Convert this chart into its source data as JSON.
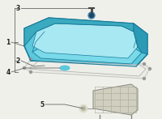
{
  "bg_color": "#f0f0eb",
  "pan_fill": "#5bc8dc",
  "pan_edge": "#1a7a9a",
  "pan_inner_fill": "#7adaea",
  "pan_inner2_fill": "#a8e8f2",
  "pan_wall_fill": "#3aaabf",
  "gasket_line": "#999999",
  "filter_fill": "#d0cfc0",
  "filter_edge": "#888880",
  "filter_grid": "#aaa898",
  "line_color": "#666666",
  "dot_color": "#4488aa",
  "dot2_color": "#336688",
  "label_fs": 5.5,
  "label_color": "#222222"
}
